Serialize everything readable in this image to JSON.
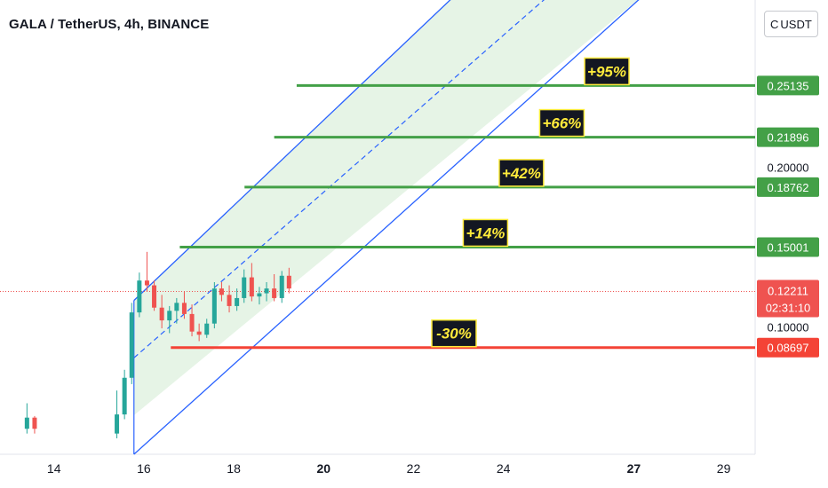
{
  "header": {
    "symbol_title": "GALA / TetherUS, 4h, BINANCE",
    "currency_prefix": "C",
    "currency_label": "USDT"
  },
  "colors": {
    "channel_line": "#2962ff",
    "channel_fill": "#e6f4e6",
    "target_line": "#43a047",
    "stop_line": "#f44336",
    "candle_up": "#26a69a",
    "candle_down": "#ef5350",
    "label_bg": "#131722",
    "label_text": "#ffeb3b",
    "label_border": "#ffeb3b"
  },
  "chart_data": {
    "type": "candlestick",
    "title": "GALA / TetherUS, 4h, BINANCE",
    "x_axis": {
      "tick_labels": [
        "14",
        "16",
        "18",
        "20",
        "22",
        "24",
        "27",
        "29"
      ],
      "tick_values": [
        13.6,
        15.6,
        17.6,
        19.6,
        21.6,
        23.6,
        26.5,
        28.5
      ],
      "bold_ticks": [
        "20",
        "27"
      ],
      "range": [
        12.4,
        29.2
      ]
    },
    "y_axis": {
      "tick_labels": [
        "0.20000",
        "0.10000"
      ],
      "tick_values": [
        0.2,
        0.1
      ],
      "range": [
        0.02,
        0.305
      ]
    },
    "current_price": {
      "value": "0.12211",
      "countdown": "02:31:10"
    },
    "candles": [
      {
        "t": 13.0,
        "o": 0.036,
        "h": 0.052,
        "l": 0.033,
        "c": 0.043
      },
      {
        "t": 13.17,
        "o": 0.043,
        "h": 0.044,
        "l": 0.033,
        "c": 0.036
      },
      {
        "t": 15.0,
        "o": 0.033,
        "h": 0.06,
        "l": 0.03,
        "c": 0.045
      },
      {
        "t": 15.17,
        "o": 0.045,
        "h": 0.073,
        "l": 0.042,
        "c": 0.068
      },
      {
        "t": 15.33,
        "o": 0.068,
        "h": 0.115,
        "l": 0.064,
        "c": 0.109
      },
      {
        "t": 15.5,
        "o": 0.109,
        "h": 0.134,
        "l": 0.106,
        "c": 0.129
      },
      {
        "t": 15.67,
        "o": 0.129,
        "h": 0.147,
        "l": 0.122,
        "c": 0.126
      },
      {
        "t": 15.83,
        "o": 0.126,
        "h": 0.129,
        "l": 0.11,
        "c": 0.112
      },
      {
        "t": 16.0,
        "o": 0.112,
        "h": 0.12,
        "l": 0.099,
        "c": 0.104
      },
      {
        "t": 16.17,
        "o": 0.104,
        "h": 0.113,
        "l": 0.096,
        "c": 0.11
      },
      {
        "t": 16.33,
        "o": 0.11,
        "h": 0.118,
        "l": 0.102,
        "c": 0.115
      },
      {
        "t": 16.5,
        "o": 0.115,
        "h": 0.122,
        "l": 0.105,
        "c": 0.108
      },
      {
        "t": 16.67,
        "o": 0.108,
        "h": 0.114,
        "l": 0.094,
        "c": 0.097
      },
      {
        "t": 16.83,
        "o": 0.097,
        "h": 0.102,
        "l": 0.091,
        "c": 0.095
      },
      {
        "t": 17.0,
        "o": 0.095,
        "h": 0.105,
        "l": 0.093,
        "c": 0.102
      },
      {
        "t": 17.17,
        "o": 0.102,
        "h": 0.128,
        "l": 0.099,
        "c": 0.124
      },
      {
        "t": 17.33,
        "o": 0.124,
        "h": 0.128,
        "l": 0.116,
        "c": 0.12
      },
      {
        "t": 17.5,
        "o": 0.12,
        "h": 0.126,
        "l": 0.109,
        "c": 0.113
      },
      {
        "t": 17.67,
        "o": 0.113,
        "h": 0.124,
        "l": 0.11,
        "c": 0.118
      },
      {
        "t": 17.83,
        "o": 0.118,
        "h": 0.136,
        "l": 0.115,
        "c": 0.131
      },
      {
        "t": 18.0,
        "o": 0.131,
        "h": 0.14,
        "l": 0.116,
        "c": 0.119
      },
      {
        "t": 18.17,
        "o": 0.119,
        "h": 0.125,
        "l": 0.114,
        "c": 0.121
      },
      {
        "t": 18.33,
        "o": 0.121,
        "h": 0.128,
        "l": 0.116,
        "c": 0.124
      },
      {
        "t": 18.5,
        "o": 0.124,
        "h": 0.133,
        "l": 0.116,
        "c": 0.118
      },
      {
        "t": 18.67,
        "o": 0.118,
        "h": 0.135,
        "l": 0.115,
        "c": 0.132
      },
      {
        "t": 18.83,
        "o": 0.132,
        "h": 0.137,
        "l": 0.121,
        "c": 0.124
      }
    ],
    "channel": {
      "lower_line": {
        "t1": 15.38,
        "v1": 0.0445,
        "t2": 26.8,
        "v2": 0.31
      },
      "upper_line": {
        "t1": 15.38,
        "v1": 0.1165,
        "t2": 22.6,
        "v2": 0.31
      },
      "middle_line": {
        "t1": 15.38,
        "v1": 0.0805,
        "t2": 24.7,
        "v2": 0.31
      },
      "fill_start_t": 15.38,
      "fill_start_v": 0.0445
    },
    "levels": [
      {
        "value": "0.25135",
        "price": 0.25135,
        "label": "+95%",
        "start_t": 19.0,
        "label_t": 25.9,
        "kind": "target"
      },
      {
        "value": "0.21896",
        "price": 0.21896,
        "label": "+66%",
        "start_t": 18.5,
        "label_t": 24.9,
        "kind": "target"
      },
      {
        "value": "0.18762",
        "price": 0.18762,
        "label": "+42%",
        "start_t": 17.84,
        "label_t": 24.0,
        "kind": "target"
      },
      {
        "value": "0.15001",
        "price": 0.15001,
        "label": "+14%",
        "start_t": 16.4,
        "label_t": 23.2,
        "kind": "target"
      },
      {
        "value": "0.08697",
        "price": 0.08697,
        "label": "-30%",
        "start_t": 16.2,
        "label_t": 22.5,
        "kind": "stop"
      }
    ]
  }
}
